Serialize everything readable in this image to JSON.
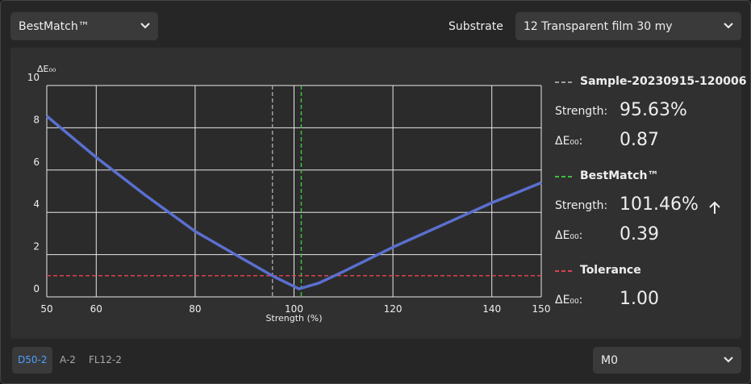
{
  "toolbar": {
    "mode": "BestMatch™",
    "substrate_label": "Substrate",
    "substrate": "12 Transparent film 30 my"
  },
  "chart_data": {
    "type": "line",
    "y_label": "ΔE₀₀",
    "x_label": "Strength (%)",
    "x": [
      50,
      60,
      70,
      80,
      90,
      96,
      101,
      105,
      110,
      120,
      130,
      140,
      150
    ],
    "series": [
      {
        "color": "#5a6fcf",
        "values": [
          8.55,
          6.6,
          4.8,
          3.1,
          1.75,
          0.95,
          0.38,
          0.65,
          1.2,
          2.35,
          3.4,
          4.45,
          5.4
        ]
      }
    ],
    "xlim": [
      50,
      150
    ],
    "ylim": [
      0,
      10
    ],
    "xticks": [
      50,
      60,
      80,
      100,
      120,
      140,
      150
    ],
    "yticks": [
      0,
      2,
      4,
      6,
      8,
      10
    ],
    "grid": true,
    "panel_labels": {
      "strength": "Strength:",
      "delta_e": "ΔE₀₀:"
    },
    "reference_lines": [
      {
        "name": "Sample-20230915-120006",
        "color": "#a0a0a0",
        "axis": "x",
        "value": 95.63,
        "value_label": "95.63%",
        "delta_e": 0.87
      },
      {
        "name": "BestMatch™",
        "color": "#3cc03c",
        "axis": "x",
        "value": 101.46,
        "value_label": "101.46%",
        "delta_e": 0.39
      },
      {
        "name": "Tolerance",
        "color": "#d9434e",
        "axis": "y",
        "value": 1,
        "value_label": "1.00"
      }
    ]
  },
  "footer": {
    "illuminants": [
      "D50-2",
      "A-2",
      "FL12-2"
    ],
    "measurement": "M0"
  }
}
